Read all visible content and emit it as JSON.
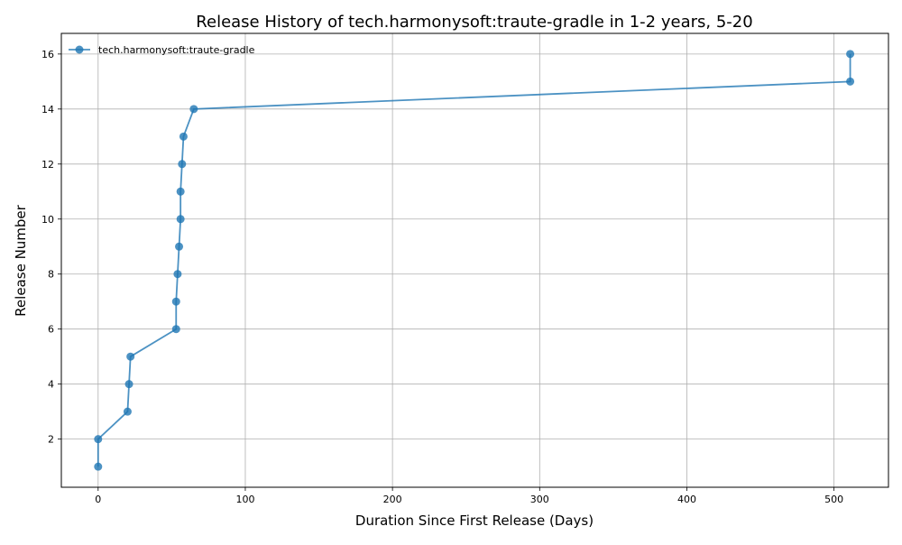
{
  "chart_data": {
    "type": "line",
    "title": "Release History of tech.harmonysoft:traute-gradle in 1-2 years, 5-20",
    "xlabel": "Duration Since First Release (Days)",
    "ylabel": "Release Number",
    "xlim": [
      -25,
      537
    ],
    "ylim": [
      0.25,
      16.75
    ],
    "xticks": [
      0,
      100,
      200,
      300,
      400,
      500
    ],
    "yticks": [
      2,
      4,
      6,
      8,
      10,
      12,
      14,
      16
    ],
    "grid": true,
    "legend_position": "top-left",
    "series": [
      {
        "name": "tech.harmonysoft:traute-gradle",
        "color": "#1f77b4",
        "marker": "circle",
        "x": [
          0,
          0,
          20,
          21,
          22,
          53,
          53,
          54,
          55,
          56,
          56,
          57,
          58,
          65,
          511,
          511
        ],
        "y": [
          1,
          2,
          3,
          4,
          5,
          6,
          7,
          8,
          9,
          10,
          11,
          12,
          13,
          14,
          15,
          16
        ]
      }
    ]
  }
}
